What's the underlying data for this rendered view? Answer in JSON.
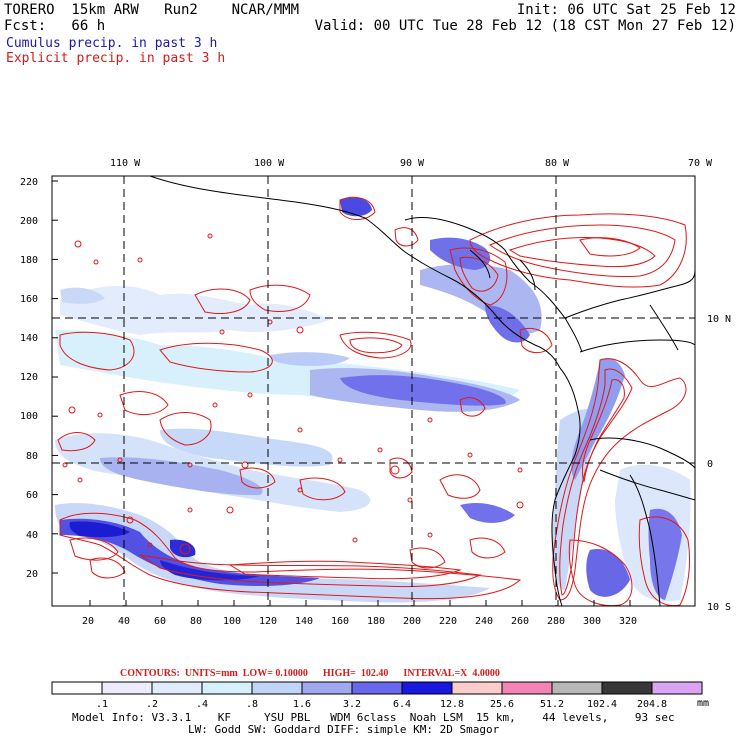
{
  "header": {
    "left_line1": "TORERO  15km ARW   Run2    NCAR/MMM",
    "left_line2": "Fcst:   66 h",
    "right_line1": "Init: 06 UTC Sat 25 Feb 12",
    "right_line2": "Valid: 00 UTC Tue 28 Feb 12 (18 CST Mon 27 Feb 12)",
    "cumulus_label": "Cumulus precip. in past 3 h",
    "explicit_label": "Explicit precip. in past 3 h"
  },
  "map": {
    "lon_labels": [
      "110 W",
      "100 W",
      "90 W",
      "80 W",
      "70 W"
    ],
    "lat_labels": [
      "10 N",
      "0",
      "10 S"
    ],
    "x_ticks": [
      "20",
      "40",
      "60",
      "80",
      "100",
      "120",
      "140",
      "160",
      "180",
      "200",
      "220",
      "240",
      "260",
      "280",
      "300",
      "320"
    ],
    "y_ticks": [
      "20",
      "40",
      "60",
      "80",
      "100",
      "120",
      "140",
      "160",
      "180",
      "200",
      "220"
    ]
  },
  "contours": {
    "text": "CONTOURS:  UNITS=mm  LOW= 0.10000      HIGH=  102.40      INTERVAL=X  4.0000"
  },
  "colorbar": {
    "labels": [
      ".1",
      ".2",
      ".4",
      ".8",
      "1.6",
      "3.2",
      "6.4",
      "12.8",
      "25.6",
      "51.2",
      "102.4",
      "204.8"
    ],
    "colors": [
      "#ffffff",
      "#ececfc",
      "#e0ecfc",
      "#d6f0fc",
      "#c0d4f8",
      "#a0a8f0",
      "#6868ec",
      "#1818e0",
      "#fccccc",
      "#f484b4",
      "#b8b8b8",
      "#383838",
      "#dca4f4"
    ],
    "unit": "mm"
  },
  "footer": {
    "line1": "Model Info: V3.3.1    KF     YSU PBL   WDM 6class  Noah LSM  15 km,    44 levels,    93 sec",
    "line2": "LW: Godd SW: Goddard DIFF: simple KM: 2D Smagor"
  }
}
